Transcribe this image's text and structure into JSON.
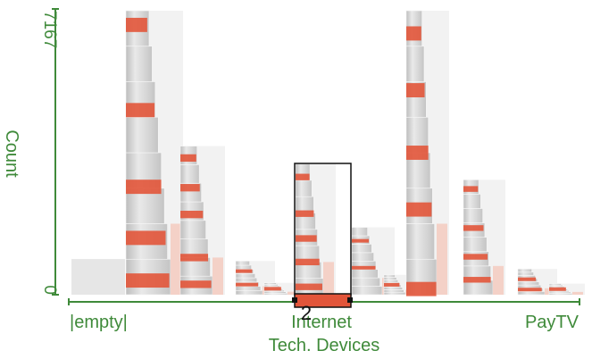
{
  "chart_data": {
    "type": "bar",
    "title": "",
    "xlabel": "Tech. Devices",
    "ylabel": "Count",
    "ylim": [
      0,
      7167
    ],
    "y_ticks": [
      "0",
      "7167"
    ],
    "x_tick_labels": [
      "|empty|",
      "Internet",
      "PayTV"
    ],
    "groups": [
      {
        "id": "empty",
        "total": 900,
        "sub": []
      },
      {
        "id": "g2",
        "total": 7167,
        "sub": [
          {
            "total": 7167,
            "highlight": [
              0.05,
              0.35,
              0.62,
              0.8,
              0.95
            ]
          },
          {
            "total": 3750,
            "highlight": [
              0.08,
              0.28,
              0.46,
              0.75,
              0.93
            ]
          },
          {
            "total": 850,
            "highlight": [
              0.3,
              0.7
            ]
          },
          {
            "total": 300,
            "highlight": [
              0.5
            ]
          }
        ]
      },
      {
        "id": "internet",
        "total": 3300,
        "selected": true,
        "sub": [
          {
            "total": 3300,
            "highlight": [
              0.1,
              0.38,
              0.57,
              0.75,
              0.94
            ]
          },
          {
            "total": 1700,
            "highlight": [
              0.2,
              0.6
            ]
          },
          {
            "total": 500,
            "highlight": [
              0.5
            ]
          }
        ]
      },
      {
        "id": "g4",
        "total": 7167,
        "sub": [
          {
            "total": 7167,
            "highlight": [
              0.08,
              0.28,
              0.5,
              0.7,
              0.98
            ]
          },
          {
            "total": 2900,
            "highlight": [
              0.08,
              0.42,
              0.67,
              0.87
            ]
          },
          {
            "total": 650,
            "highlight": [
              0.4,
              0.8
            ]
          },
          {
            "total": 280,
            "highlight": [
              0.5
            ]
          }
        ]
      }
    ],
    "selection_label": "2",
    "colors": {
      "axis": "#3f8a3a",
      "bar_light": "#e6e6e6",
      "bar_mid": "#c8c8c8",
      "highlight": "#e2553a",
      "highlight_soft": "#f5c3b5",
      "selection_stroke": "#111111"
    }
  }
}
